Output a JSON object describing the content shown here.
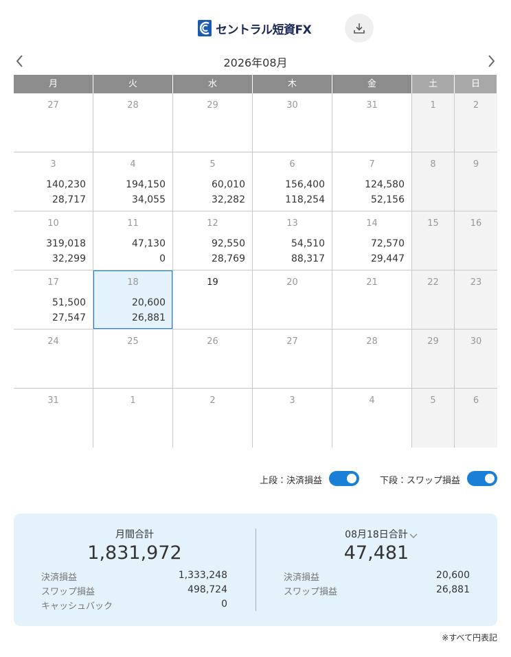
{
  "header": {
    "logo": "セントラル短資FX"
  },
  "calendar": {
    "month": "2026年08月",
    "weekdays": [
      "月",
      "火",
      "水",
      "木",
      "金",
      "土",
      "日"
    ],
    "weeks": [
      [
        {
          "day": "27"
        },
        {
          "day": "28"
        },
        {
          "day": "29"
        },
        {
          "day": "30"
        },
        {
          "day": "31"
        },
        {
          "day": "1"
        },
        {
          "day": "2"
        }
      ],
      [
        {
          "day": "3",
          "upper": "140,230",
          "lower": "28,717"
        },
        {
          "day": "4",
          "upper": "194,150",
          "lower": "34,055"
        },
        {
          "day": "5",
          "upper": "60,010",
          "lower": "32,282"
        },
        {
          "day": "6",
          "upper": "156,400",
          "lower": "118,254"
        },
        {
          "day": "7",
          "upper": "124,580",
          "lower": "52,156"
        },
        {
          "day": "8"
        },
        {
          "day": "9"
        }
      ],
      [
        {
          "day": "10",
          "upper": "319,018",
          "lower": "32,299"
        },
        {
          "day": "11",
          "upper": "47,130",
          "lower": "0"
        },
        {
          "day": "12",
          "upper": "92,550",
          "lower": "28,769"
        },
        {
          "day": "13",
          "upper": "54,510",
          "lower": "88,317"
        },
        {
          "day": "14",
          "upper": "72,570",
          "lower": "29,447"
        },
        {
          "day": "15"
        },
        {
          "day": "16"
        }
      ],
      [
        {
          "day": "17",
          "upper": "51,500",
          "lower": "27,547"
        },
        {
          "day": "18",
          "upper": "20,600",
          "lower": "26,881",
          "selected": true
        },
        {
          "day": "19",
          "today": true
        },
        {
          "day": "20"
        },
        {
          "day": "21"
        },
        {
          "day": "22"
        },
        {
          "day": "23"
        }
      ],
      [
        {
          "day": "24"
        },
        {
          "day": "25"
        },
        {
          "day": "26"
        },
        {
          "day": "27"
        },
        {
          "day": "28"
        },
        {
          "day": "29"
        },
        {
          "day": "30"
        }
      ],
      [
        {
          "day": "31"
        },
        {
          "day": "1"
        },
        {
          "day": "2"
        },
        {
          "day": "3"
        },
        {
          "day": "4"
        },
        {
          "day": "5"
        },
        {
          "day": "6"
        }
      ]
    ]
  },
  "toggles": [
    {
      "label": "上段：決済損益",
      "on": true
    },
    {
      "label": "下段：スワップ損益",
      "on": true
    }
  ],
  "summary": {
    "monthly": {
      "title": "月間合計",
      "total": "1,831,972",
      "rows": [
        {
          "label": "決済損益",
          "value": "1,333,248"
        },
        {
          "label": "スワップ損益",
          "value": "498,724"
        },
        {
          "label": "キャッシュバック",
          "value": "0"
        }
      ]
    },
    "daily": {
      "title": "08月18日合計",
      "total": "47,481",
      "rows": [
        {
          "label": "決済損益",
          "value": "20,600"
        },
        {
          "label": "スワップ損益",
          "value": "26,881"
        }
      ]
    }
  },
  "footnote": "※すべて円表記"
}
